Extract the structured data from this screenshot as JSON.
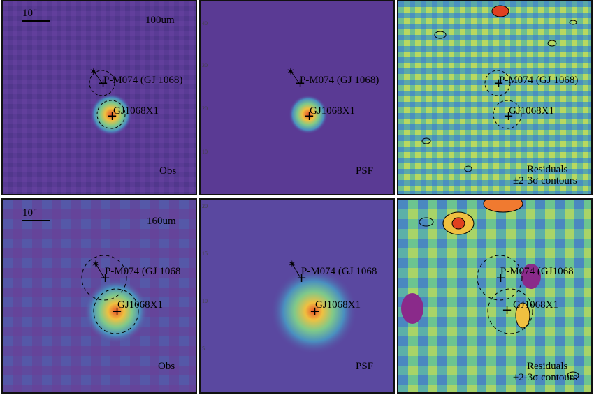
{
  "figure": {
    "scale_bar_label": "10\"",
    "rows": [
      {
        "band": "100um",
        "panels": [
          {
            "kind": "Obs",
            "label": "Obs",
            "background": "#5b3c96"
          },
          {
            "kind": "PSF",
            "label": "PSF",
            "background": "#5a3a94"
          },
          {
            "kind": "Residuals",
            "label": "Residuals",
            "contours": "±2-3σ contours",
            "background": "#55b0a0"
          }
        ]
      },
      {
        "band": "160um",
        "panels": [
          {
            "kind": "Obs",
            "label": "Obs",
            "background": "#5f4a9e"
          },
          {
            "kind": "PSF",
            "label": "PSF",
            "background": "#5a48a0"
          },
          {
            "kind": "Residuals",
            "label": "Residuals",
            "contours": "±2-3σ contours",
            "background": "#4fa6b0"
          }
        ]
      }
    ],
    "sources": {
      "star": "P-M074 (GJ 1068)",
      "star_truncated": "P-M074 (GJ 1068",
      "star_residual_160": "P-M074 (GJ1068",
      "companion": "GJ1068X1"
    },
    "axis_ticks_top": [
      "40",
      "30",
      "20",
      "10"
    ],
    "axis_ticks_bottom": [
      "20",
      "15",
      "10",
      "5"
    ]
  }
}
